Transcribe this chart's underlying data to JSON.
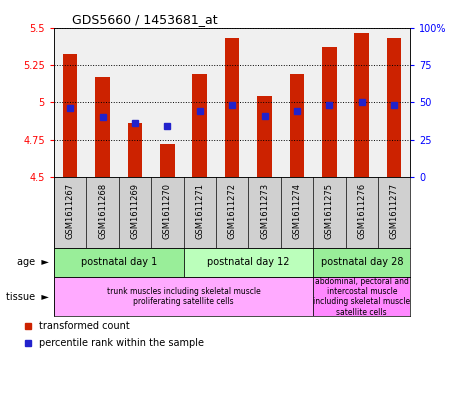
{
  "title": "GDS5660 / 1453681_at",
  "samples": [
    "GSM1611267",
    "GSM1611268",
    "GSM1611269",
    "GSM1611270",
    "GSM1611271",
    "GSM1611272",
    "GSM1611273",
    "GSM1611274",
    "GSM1611275",
    "GSM1611276",
    "GSM1611277"
  ],
  "red_values": [
    5.32,
    5.17,
    4.86,
    4.72,
    5.19,
    5.43,
    5.04,
    5.19,
    5.37,
    5.46,
    5.43
  ],
  "blue_values": [
    4.96,
    4.9,
    4.86,
    4.84,
    4.94,
    4.98,
    4.91,
    4.94,
    4.98,
    5.0,
    4.98
  ],
  "ymin": 4.5,
  "ymax": 5.5,
  "bar_color": "#cc2200",
  "blue_color": "#2222cc",
  "age_groups": [
    {
      "label": "postnatal day 1",
      "start": 0,
      "end": 4,
      "color": "#99ee99"
    },
    {
      "label": "postnatal day 12",
      "start": 4,
      "end": 8,
      "color": "#bbffbb"
    },
    {
      "label": "postnatal day 28",
      "start": 8,
      "end": 11,
      "color": "#99ee99"
    }
  ],
  "tissue_groups": [
    {
      "label": "trunk muscles including skeletal muscle\nproliferating satellite cells",
      "start": 0,
      "end": 8,
      "color": "#ffaaff"
    },
    {
      "label": "abdominal, pectoral and\nintercostal muscle\nincluding skeletal muscle\nsatellite cells",
      "start": 8,
      "end": 11,
      "color": "#ff88ff"
    }
  ],
  "right_yticks": [
    0,
    25,
    50,
    75,
    100
  ],
  "right_yticklabels": [
    "0",
    "25",
    "50",
    "75",
    "100%"
  ],
  "cell_bg": "#d0d0d0",
  "plot_bg": "#f0f0f0"
}
